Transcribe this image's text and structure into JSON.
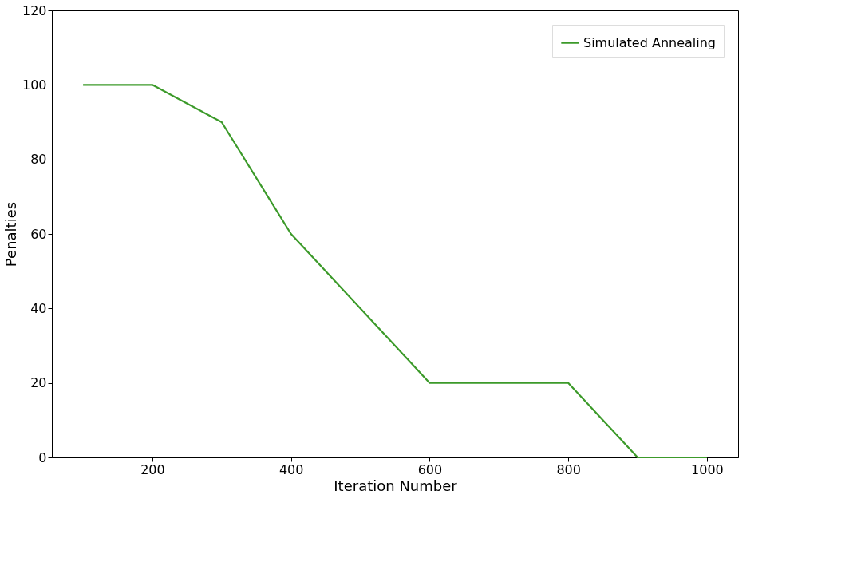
{
  "chart_data": {
    "type": "line",
    "xlabel": "Iteration Number",
    "ylabel": "Penalties",
    "x": [
      100,
      200,
      300,
      400,
      500,
      600,
      700,
      800,
      900,
      1000
    ],
    "series": [
      {
        "name": "Simulated Annealing",
        "color": "#3c9a2a",
        "values": [
          100,
          100,
          90,
          60,
          40,
          20,
          20,
          20,
          0,
          0
        ]
      }
    ],
    "xlim": [
      55,
      1045
    ],
    "xticks": [
      200,
      400,
      600,
      800,
      1000
    ],
    "ylim": [
      0,
      120
    ],
    "yticks": [
      0,
      20,
      40,
      60,
      80,
      100,
      120
    ],
    "grid": false,
    "legend": "top right",
    "marker": "none",
    "line_style": "solid"
  }
}
